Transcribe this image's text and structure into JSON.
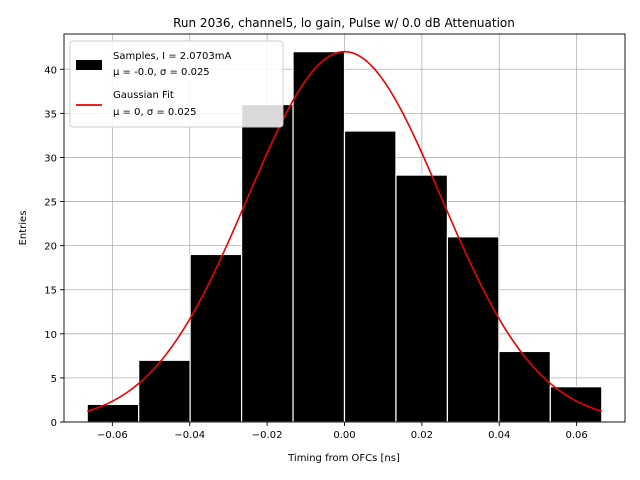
{
  "chart_data": {
    "type": "bar",
    "title": "Run 2036, channel5, lo gain, Pulse w/ 0.0 dB Attenuation",
    "xlabel": "Timing from OFCs [ns]",
    "ylabel": "Entries",
    "xlim": [
      -0.0725,
      0.0725
    ],
    "ylim": [
      0,
      44
    ],
    "x_ticks": [
      -0.06,
      -0.04,
      -0.02,
      0.0,
      0.02,
      0.04,
      0.06
    ],
    "x_tick_labels": [
      "−0.06",
      "−0.04",
      "−0.02",
      "0.00",
      "0.02",
      "0.04",
      "0.06"
    ],
    "y_ticks": [
      0,
      5,
      10,
      15,
      20,
      25,
      30,
      35,
      40
    ],
    "y_tick_labels": [
      "0",
      "5",
      "10",
      "15",
      "20",
      "25",
      "30",
      "35",
      "40"
    ],
    "grid": true,
    "legend_position": "top-left",
    "bin_edges": [
      -0.0665,
      -0.0532,
      -0.0399,
      -0.0266,
      -0.0133,
      0.0,
      0.0133,
      0.0266,
      0.0399,
      0.0532,
      0.0665
    ],
    "series": [
      {
        "name_line1": "Samples, I = 2.0703mA",
        "name_line2": "μ = -0.0, σ = 0.025",
        "kind": "histogram",
        "values": [
          2,
          7,
          19,
          36,
          42,
          33,
          28,
          21,
          8,
          4
        ],
        "color": "#000000",
        "edgecolor": "#ffffff"
      },
      {
        "name_line1": "Gaussian Fit",
        "name_line2": "μ = 0, σ = 0.025",
        "kind": "line",
        "mu": 0,
        "sigma": 0.025,
        "amplitude": 42,
        "x_range": [
          -0.0665,
          0.0665
        ],
        "color": "#ee0000"
      }
    ]
  }
}
